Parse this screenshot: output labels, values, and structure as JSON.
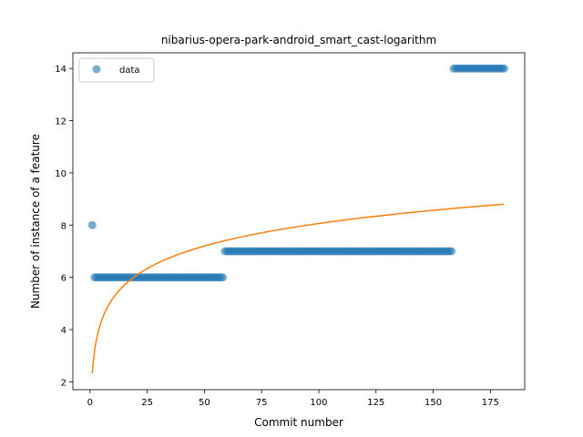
{
  "chart_data": {
    "type": "scatter",
    "title": "nibarius-opera-park-android_smart_cast-logarithm",
    "xlabel": "Commit number",
    "ylabel": "Number of instance of a feature",
    "xlim": [
      -7.5,
      190
    ],
    "ylim": [
      1.7,
      14.6
    ],
    "xticks": [
      0,
      25,
      50,
      75,
      100,
      125,
      150,
      175
    ],
    "yticks": [
      2,
      4,
      6,
      8,
      10,
      12,
      14
    ],
    "grid": false,
    "legend": {
      "placement": "top-left",
      "entries": [
        "data"
      ]
    },
    "colors": {
      "data": "#1f77b4",
      "fit": "#ff7f0e"
    },
    "series": [
      {
        "name": "data",
        "kind": "scatter",
        "segments": [
          {
            "x_start": 1,
            "x_end": 1,
            "y": 8
          },
          {
            "x_start": 2,
            "x_end": 58,
            "y": 6
          },
          {
            "x_start": 59,
            "x_end": 158,
            "y": 7
          },
          {
            "x_start": 159,
            "x_end": 181,
            "y": 14
          }
        ]
      },
      {
        "kind": "line",
        "model": "logarithmic",
        "a": 2.33,
        "b": 1.245,
        "x_range": [
          1,
          181
        ]
      }
    ]
  }
}
